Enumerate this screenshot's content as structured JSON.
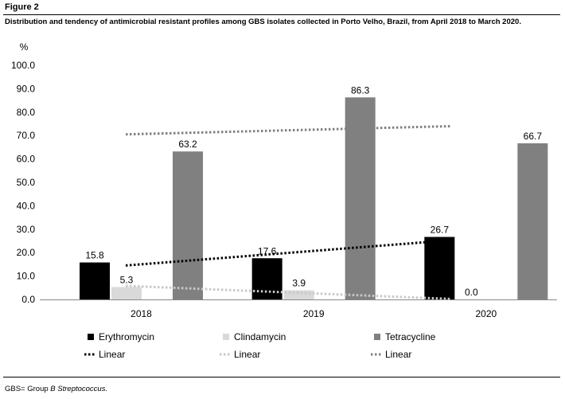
{
  "figure": {
    "label": "Figure 2",
    "caption": "Distribution and tendency of antimicrobial resistant profiles among GBS isolates collected in Porto Velho, Brazil, from April 2018 to March 2020.",
    "footnote_prefix": "GBS= Group ",
    "footnote_italic": "B Streptococcus."
  },
  "chart_data": {
    "type": "bar",
    "title": "",
    "xlabel": "",
    "ylabel": "%",
    "ylim": [
      0,
      100
    ],
    "yticks": [
      "0.0",
      "10.0",
      "20.0",
      "30.0",
      "40.0",
      "50.0",
      "60.0",
      "70.0",
      "80.0",
      "90.0",
      "100.0"
    ],
    "categories": [
      "2018",
      "2019",
      "2020"
    ],
    "grid": false,
    "legend_position": "bottom",
    "series": [
      {
        "name": "Erythromycin",
        "values": [
          15.8,
          17.6,
          26.7
        ],
        "labels": [
          "15.8",
          "17.6",
          "26.7"
        ],
        "color": "#000000"
      },
      {
        "name": "Clindamycin",
        "values": [
          5.3,
          3.9,
          0.0
        ],
        "labels": [
          "5.3",
          "3.9",
          "0.0"
        ],
        "color": "#d9d9d9"
      },
      {
        "name": "Tetracycline",
        "values": [
          63.2,
          86.3,
          66.7
        ],
        "labels": [
          "63.2",
          "86.3",
          "66.7"
        ],
        "color": "#808080"
      }
    ],
    "trendlines": [
      {
        "name": "Linear",
        "series": "Erythromycin",
        "start": 14.5,
        "end": 25.3,
        "color": "#000000"
      },
      {
        "name": "Linear",
        "series": "Clindamycin",
        "start": 5.8,
        "end": 0.2,
        "color": "#c8c8c8"
      },
      {
        "name": "Linear",
        "series": "Tetracycline",
        "start": 70.5,
        "end": 74.0,
        "color": "#808080"
      }
    ]
  }
}
